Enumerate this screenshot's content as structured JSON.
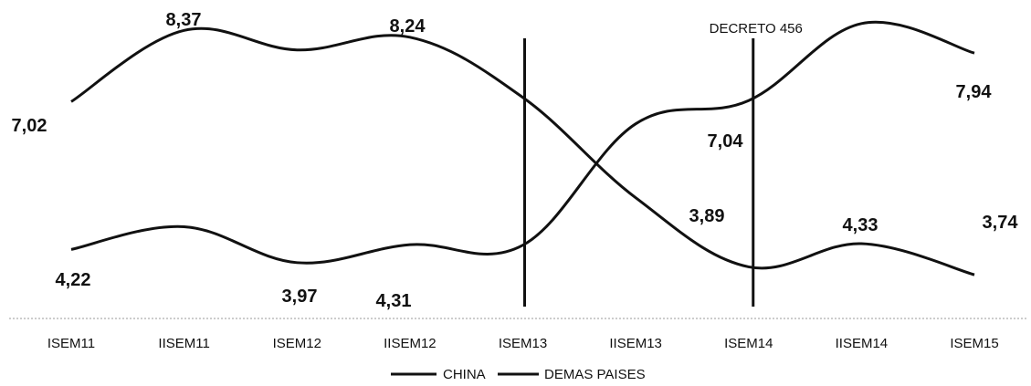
{
  "chart_data": {
    "type": "line",
    "categories": [
      "ISEM11",
      "IISEM11",
      "ISEM12",
      "IISEM12",
      "ISEM13",
      "IISEM13",
      "ISEM14",
      "IISEM14",
      "ISEM15"
    ],
    "series": [
      {
        "name": "CHINA",
        "values": [
          4.22,
          4.65,
          3.97,
          4.31,
          4.3,
          6.6,
          7.04,
          8.5,
          7.94
        ],
        "labels": [
          "4,22",
          null,
          "3,97",
          "4,31",
          null,
          null,
          "7,04",
          null,
          "7,94"
        ],
        "color": "#111111"
      },
      {
        "name": "DEMAS PAISES",
        "values": [
          7.02,
          8.37,
          8.0,
          8.24,
          7.1,
          5.2,
          3.89,
          4.33,
          3.74
        ],
        "labels": [
          "7,02",
          "8,37",
          null,
          "8,24",
          null,
          null,
          "3,89",
          "4,33",
          "3,74"
        ],
        "color": "#111111"
      }
    ],
    "annotations": [
      {
        "at": "ISEM13",
        "text": ""
      },
      {
        "at": "ISEM14",
        "text": "DECRETO 456"
      }
    ],
    "ylim": [
      3.5,
      8.6
    ],
    "grid": false,
    "legend_position": "bottom"
  }
}
